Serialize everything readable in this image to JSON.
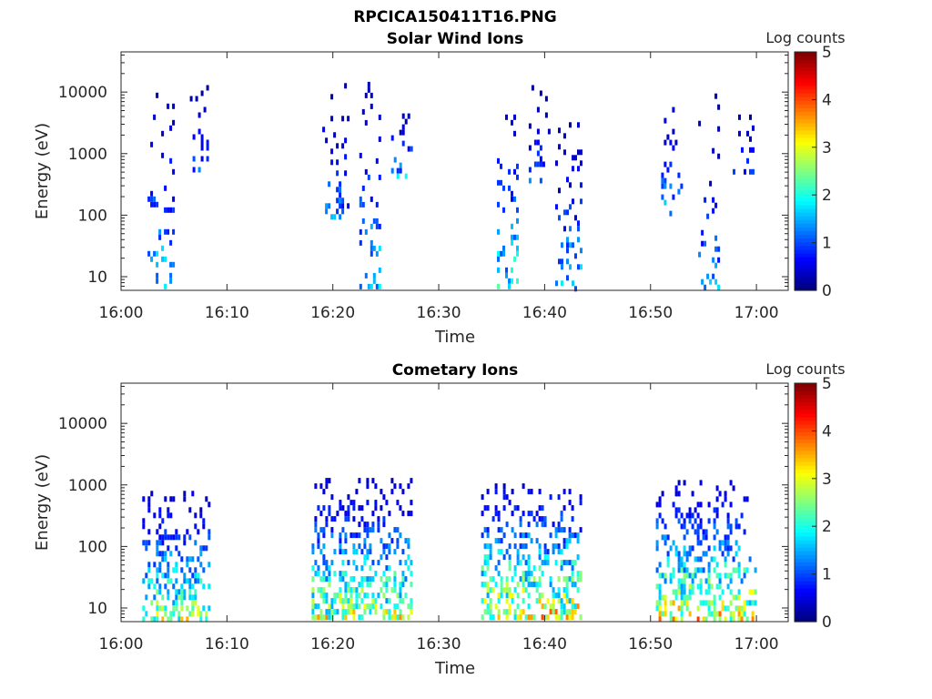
{
  "figure_title": "RPCICA150411T16.PNG",
  "chart_data": [
    {
      "type": "heatmap",
      "title": "Solar Wind Ions",
      "xlabel": "Time",
      "ylabel": "Energy (eV)",
      "x_ticks": [
        "16:00",
        "16:10",
        "16:20",
        "16:30",
        "16:40",
        "16:50",
        "17:00"
      ],
      "x_range_minutes": [
        0,
        63
      ],
      "y_scale": "log",
      "y_ticks": [
        "10",
        "100",
        "1000",
        "10000"
      ],
      "y_range": [
        6,
        45000
      ],
      "colorbar": {
        "label": "Log counts",
        "range": [
          0,
          5
        ],
        "ticks": [
          "0",
          "1",
          "2",
          "3",
          "4",
          "5"
        ],
        "colormap": "jet"
      },
      "bursts": [
        {
          "t_start": 2.5,
          "t_end": 5.0,
          "e_min": 7,
          "e_max": 12000,
          "peak": 2.0
        },
        {
          "t_start": 6.5,
          "t_end": 8.3,
          "e_min": 500,
          "e_max": 13000,
          "peak": 1.2
        },
        {
          "t_start": 19.0,
          "t_end": 21.5,
          "e_min": 70,
          "e_max": 14000,
          "peak": 1.5
        },
        {
          "t_start": 22.5,
          "t_end": 24.5,
          "e_min": 7,
          "e_max": 18000,
          "peak": 2.0
        },
        {
          "t_start": 25.5,
          "t_end": 27.5,
          "e_min": 450,
          "e_max": 4500,
          "peak": 1.8
        },
        {
          "t_start": 35.5,
          "t_end": 37.5,
          "e_min": 7,
          "e_max": 12000,
          "peak": 2.2
        },
        {
          "t_start": 38.5,
          "t_end": 40.5,
          "e_min": 400,
          "e_max": 13000,
          "peak": 1.2
        },
        {
          "t_start": 41.0,
          "t_end": 43.5,
          "e_min": 7,
          "e_max": 9000,
          "peak": 1.8
        },
        {
          "t_start": 51.0,
          "t_end": 53.0,
          "e_min": 80,
          "e_max": 7000,
          "peak": 1.8
        },
        {
          "t_start": 54.5,
          "t_end": 56.5,
          "e_min": 7,
          "e_max": 9500,
          "peak": 1.5
        },
        {
          "t_start": 57.5,
          "t_end": 59.8,
          "e_min": 500,
          "e_max": 6500,
          "peak": 1.2
        }
      ]
    },
    {
      "type": "heatmap",
      "title": "Cometary Ions",
      "xlabel": "Time",
      "ylabel": "Energy (eV)",
      "x_ticks": [
        "16:00",
        "16:10",
        "16:20",
        "16:30",
        "16:40",
        "16:50",
        "17:00"
      ],
      "x_range_minutes": [
        0,
        63
      ],
      "y_scale": "log",
      "y_ticks": [
        "10",
        "100",
        "1000",
        "10000"
      ],
      "y_range": [
        6,
        45000
      ],
      "colorbar": {
        "label": "Log counts",
        "range": [
          0,
          5
        ],
        "ticks": [
          "0",
          "1",
          "2",
          "3",
          "4",
          "5"
        ],
        "colormap": "jet"
      },
      "bursts": [
        {
          "t_start": 2.0,
          "t_end": 8.3,
          "e_min": 7,
          "e_max": 800,
          "peak": 3.0
        },
        {
          "t_start": 18.0,
          "t_end": 27.5,
          "e_min": 7,
          "e_max": 1300,
          "peak": 3.2
        },
        {
          "t_start": 34.0,
          "t_end": 43.5,
          "e_min": 7,
          "e_max": 1300,
          "peak": 3.6
        },
        {
          "t_start": 50.5,
          "t_end": 59.8,
          "e_min": 7,
          "e_max": 1200,
          "peak": 3.5
        }
      ]
    }
  ]
}
